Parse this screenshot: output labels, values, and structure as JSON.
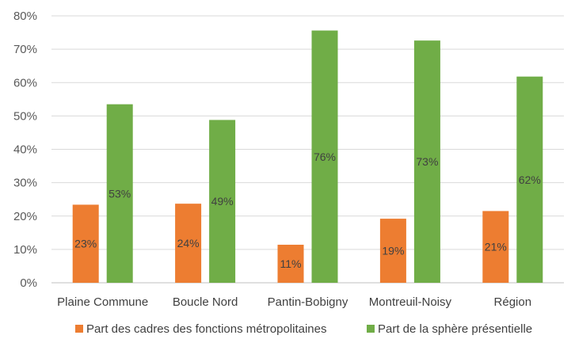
{
  "chart_data": {
    "type": "bar",
    "categories": [
      "Plaine Commune",
      "Boucle Nord",
      "Pantin-Bobigny",
      "Montreuil-Noisy",
      "Région"
    ],
    "series": [
      {
        "name": "Part des cadres des fonctions métropolitaines",
        "color": "#ED7D31",
        "values": [
          23.4,
          23.7,
          11.4,
          19.2,
          21.5
        ],
        "labels": [
          "23%",
          "24%",
          "11%",
          "19%",
          "21%"
        ]
      },
      {
        "name": "Part de la sphère présentielle",
        "color": "#70AD47",
        "values": [
          53.5,
          48.8,
          75.6,
          72.6,
          61.8
        ],
        "labels": [
          "53%",
          "49%",
          "76%",
          "73%",
          "62%"
        ]
      }
    ],
    "ylim": [
      0,
      80
    ],
    "yticks": [
      "0%",
      "10%",
      "20%",
      "30%",
      "40%",
      "50%",
      "60%",
      "70%",
      "80%"
    ],
    "title": "",
    "xlabel": "",
    "ylabel": "",
    "grid": true,
    "legend_position": "bottom"
  }
}
